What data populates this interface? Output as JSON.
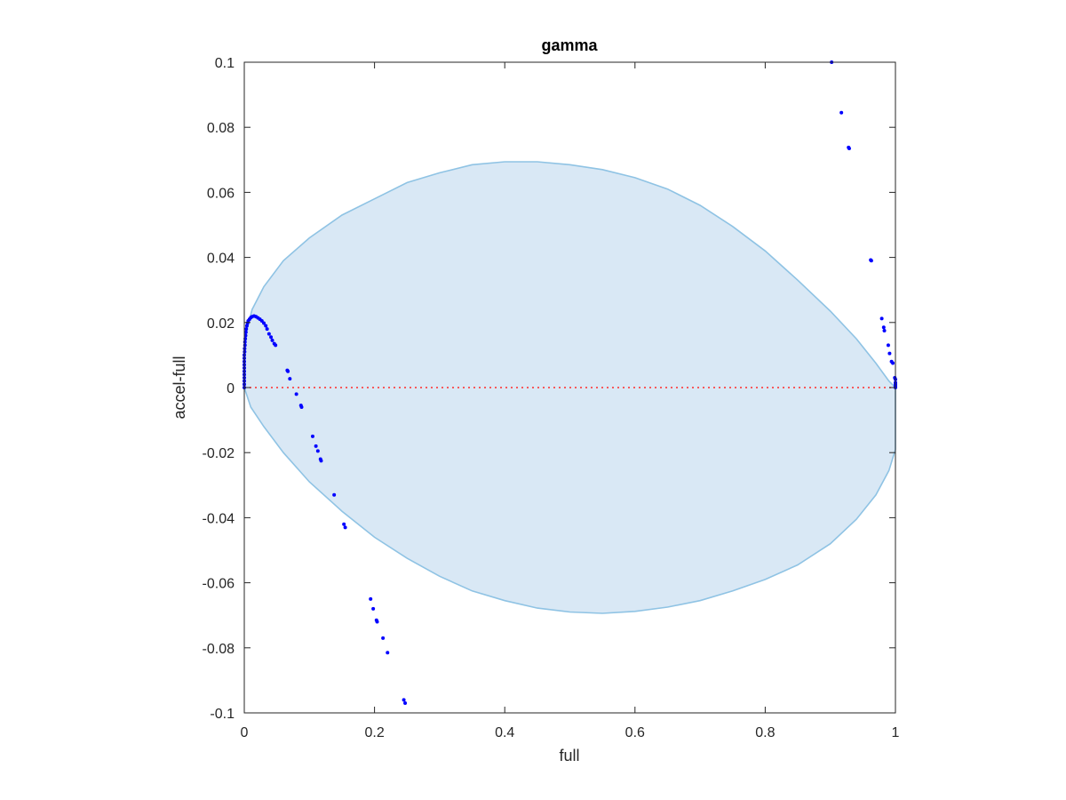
{
  "chart_data": {
    "type": "scatter",
    "title": "gamma",
    "xlabel": "full",
    "ylabel": "accel-full",
    "xlim": [
      0,
      1
    ],
    "ylim": [
      -0.1,
      0.1
    ],
    "xticks": [
      0,
      0.2,
      0.4,
      0.6,
      0.8,
      1
    ],
    "xtick_labels": [
      "0",
      "0.2",
      "0.4",
      "0.6",
      "0.8",
      "1"
    ],
    "yticks": [
      -0.1,
      -0.08,
      -0.06,
      -0.04,
      -0.02,
      0,
      0.02,
      0.04,
      0.06,
      0.08,
      0.1
    ],
    "ytick_labels": [
      "-0.1",
      "-0.08",
      "-0.06",
      "-0.04",
      "-0.02",
      "0",
      "0.02",
      "0.04",
      "0.06",
      "0.08",
      "0.1"
    ],
    "grid": false,
    "reference_line": {
      "y": 0,
      "color": "#ff2a2a",
      "style": "dotted"
    },
    "region": {
      "shape": "ellipse",
      "fill": "#d9e8f5",
      "stroke": "#8fc3e4",
      "boundary": [
        [
          0.0,
          0.0
        ],
        [
          0.0,
          0.008
        ],
        [
          0.003,
          0.017
        ],
        [
          0.012,
          0.024
        ],
        [
          0.03,
          0.031
        ],
        [
          0.06,
          0.039
        ],
        [
          0.1,
          0.046
        ],
        [
          0.15,
          0.053
        ],
        [
          0.2,
          0.058
        ],
        [
          0.25,
          0.063
        ],
        [
          0.3,
          0.066
        ],
        [
          0.35,
          0.0685
        ],
        [
          0.4,
          0.0694
        ],
        [
          0.45,
          0.0694
        ],
        [
          0.5,
          0.0685
        ],
        [
          0.55,
          0.067
        ],
        [
          0.6,
          0.0645
        ],
        [
          0.65,
          0.061
        ],
        [
          0.7,
          0.056
        ],
        [
          0.75,
          0.0495
        ],
        [
          0.8,
          0.042
        ],
        [
          0.85,
          0.033
        ],
        [
          0.9,
          0.0235
        ],
        [
          0.94,
          0.015
        ],
        [
          0.97,
          0.0075
        ],
        [
          0.99,
          0.002
        ],
        [
          1.0,
          0.0
        ],
        [
          1.0,
          -0.019
        ],
        [
          0.99,
          -0.0255
        ],
        [
          0.97,
          -0.033
        ],
        [
          0.94,
          -0.0405
        ],
        [
          0.9,
          -0.048
        ],
        [
          0.85,
          -0.0545
        ],
        [
          0.8,
          -0.059
        ],
        [
          0.75,
          -0.0625
        ],
        [
          0.7,
          -0.0655
        ],
        [
          0.65,
          -0.0675
        ],
        [
          0.6,
          -0.0688
        ],
        [
          0.55,
          -0.0694
        ],
        [
          0.5,
          -0.069
        ],
        [
          0.45,
          -0.0678
        ],
        [
          0.4,
          -0.0655
        ],
        [
          0.35,
          -0.0625
        ],
        [
          0.3,
          -0.058
        ],
        [
          0.25,
          -0.0525
        ],
        [
          0.2,
          -0.046
        ],
        [
          0.15,
          -0.038
        ],
        [
          0.1,
          -0.029
        ],
        [
          0.06,
          -0.02
        ],
        [
          0.03,
          -0.012
        ],
        [
          0.01,
          -0.006
        ],
        [
          0.0,
          0.0
        ]
      ]
    },
    "series": [
      {
        "color": "#0000ff",
        "points": [
          [
            0.0,
            0.0
          ],
          [
            0.0,
            0.001
          ],
          [
            0.0,
            0.002
          ],
          [
            0.0,
            0.003
          ],
          [
            0.0,
            0.004
          ],
          [
            0.0,
            0.005
          ],
          [
            0.0,
            0.006
          ],
          [
            0.0,
            0.007
          ],
          [
            0.0,
            0.008
          ],
          [
            0.0,
            0.009
          ],
          [
            0.0,
            0.01
          ],
          [
            0.0005,
            0.011
          ],
          [
            0.0005,
            0.012
          ],
          [
            0.001,
            0.013
          ],
          [
            0.001,
            0.014
          ],
          [
            0.0015,
            0.015
          ],
          [
            0.002,
            0.016
          ],
          [
            0.0025,
            0.017
          ],
          [
            0.003,
            0.018
          ],
          [
            0.004,
            0.019
          ],
          [
            0.005,
            0.0198
          ],
          [
            0.006,
            0.0205
          ],
          [
            0.008,
            0.021
          ],
          [
            0.01,
            0.0215
          ],
          [
            0.012,
            0.0218
          ],
          [
            0.015,
            0.022
          ],
          [
            0.018,
            0.0218
          ],
          [
            0.021,
            0.0214
          ],
          [
            0.024,
            0.021
          ],
          [
            0.027,
            0.0205
          ],
          [
            0.03,
            0.0198
          ],
          [
            0.033,
            0.019
          ],
          [
            0.035,
            0.018
          ],
          [
            0.038,
            0.0165
          ],
          [
            0.041,
            0.0155
          ],
          [
            0.043,
            0.0145
          ],
          [
            0.046,
            0.0135
          ],
          [
            0.048,
            0.013
          ],
          [
            0.066,
            0.0053
          ],
          [
            0.067,
            0.005
          ],
          [
            0.07,
            0.0027
          ],
          [
            0.08,
            -0.002
          ],
          [
            0.087,
            -0.0055
          ],
          [
            0.088,
            -0.006
          ],
          [
            0.105,
            -0.015
          ],
          [
            0.11,
            -0.018
          ],
          [
            0.113,
            -0.0195
          ],
          [
            0.117,
            -0.022
          ],
          [
            0.118,
            -0.0225
          ],
          [
            0.138,
            -0.033
          ],
          [
            0.153,
            -0.042
          ],
          [
            0.155,
            -0.043
          ],
          [
            0.194,
            -0.065
          ],
          [
            0.198,
            -0.068
          ],
          [
            0.203,
            -0.0715
          ],
          [
            0.204,
            -0.072
          ],
          [
            0.213,
            -0.077
          ],
          [
            0.22,
            -0.0815
          ],
          [
            0.245,
            -0.096
          ],
          [
            0.247,
            -0.097
          ],
          [
            0.902,
            0.1
          ],
          [
            0.917,
            0.0845
          ],
          [
            0.928,
            0.0738
          ],
          [
            0.929,
            0.0735
          ],
          [
            0.962,
            0.0392
          ],
          [
            0.963,
            0.039
          ],
          [
            0.979,
            0.0212
          ],
          [
            0.982,
            0.0185
          ],
          [
            0.983,
            0.0175
          ],
          [
            0.989,
            0.013
          ],
          [
            0.991,
            0.0105
          ],
          [
            0.994,
            0.008
          ],
          [
            0.996,
            0.0075
          ],
          [
            0.999,
            0.003
          ],
          [
            1.0,
            0.0025
          ],
          [
            1.0,
            0.0015
          ],
          [
            1.0,
            0.001
          ],
          [
            1.0,
            0.0005
          ],
          [
            1.0,
            0.0
          ]
        ]
      }
    ]
  }
}
